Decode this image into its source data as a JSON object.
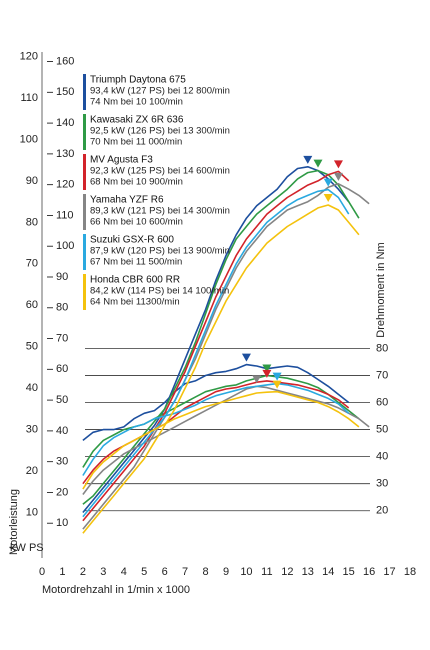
{
  "chart_data": {
    "type": "line",
    "xlabel": "Motordrehzahl in 1/min x 1000",
    "ylabel": "Motorleistung",
    "y_unit_label": "kW PS",
    "y2label": "Drehmoment in Nm",
    "x": [
      2,
      2.5,
      3,
      3.5,
      4,
      4.5,
      5,
      5.5,
      6,
      6.5,
      7,
      7.5,
      8,
      8.5,
      9,
      9.5,
      10,
      10.5,
      11,
      11.5,
      12,
      12.5,
      13,
      13.5,
      14,
      14.5,
      15,
      15.5,
      16
    ],
    "xlim": [
      0,
      18
    ],
    "xticks": [
      0,
      1,
      2,
      3,
      4,
      5,
      6,
      7,
      8,
      9,
      10,
      11,
      12,
      13,
      14,
      15,
      16,
      17,
      18
    ],
    "ylim": [
      0,
      124
    ],
    "yticks": [
      10,
      20,
      30,
      40,
      50,
      60,
      70,
      80,
      90,
      100,
      110,
      120
    ],
    "ps_lim": [
      0,
      167
    ],
    "ps_ticks": [
      10,
      20,
      30,
      40,
      50,
      60,
      70,
      80,
      90,
      100,
      110,
      120,
      130,
      140,
      150,
      160
    ],
    "y2lim": [
      4,
      194
    ],
    "y2ticks": [
      20,
      30,
      40,
      50,
      60,
      70,
      80
    ],
    "series": [
      {
        "name": "Triumph Daytona 675",
        "details": [
          "93,4 kW (127 PS) bei 12 800/min",
          "74 Nm bei 10 100/min"
        ],
        "color": "#1d4f9e",
        "values": [
          10,
          13,
          16,
          19,
          22,
          25,
          28,
          31,
          35,
          41,
          47,
          53,
          59,
          66,
          72,
          77,
          81,
          84,
          86,
          88,
          91,
          93,
          93.4,
          92.5,
          90.5,
          88,
          85,
          null,
          null
        ],
        "torque": [
          46,
          49,
          50,
          50,
          51,
          54,
          56,
          57,
          60,
          64,
          67,
          68,
          70,
          71,
          71.5,
          72.5,
          74,
          73.5,
          72.5,
          73,
          73.5,
          73,
          71,
          68.5,
          66,
          63,
          60,
          null,
          null
        ]
      },
      {
        "name": "Kawasaki ZX 6R 636",
        "details": [
          "92,5 kW (126 PS) bei 13 300/min",
          "70 Nm bei 11 000/min"
        ],
        "color": "#2f9a45",
        "values": [
          12,
          14,
          17,
          20,
          23,
          26,
          29,
          32,
          35,
          40,
          45,
          51,
          58,
          65,
          71,
          76,
          79,
          82,
          84,
          86,
          88,
          90.5,
          92,
          92.5,
          91.5,
          89,
          85,
          81,
          null
        ],
        "torque": [
          36,
          42,
          46,
          48,
          50,
          51,
          52,
          54,
          56,
          58,
          60,
          62,
          64,
          65,
          66,
          66.5,
          68,
          69,
          70,
          69.5,
          69,
          68,
          67,
          65.5,
          63,
          60,
          57,
          54,
          null
        ]
      },
      {
        "name": "MV Agusta F3",
        "details": [
          "92,3 kW (125 PS) bei 14 600/min",
          "68 Nm bei 10 900/min"
        ],
        "color": "#d2232a",
        "values": [
          8,
          11,
          14,
          17,
          20,
          23,
          26,
          30,
          34,
          39,
          44,
          50,
          56,
          62,
          67,
          72,
          76,
          79,
          82,
          84,
          86,
          87.5,
          89,
          90,
          91.5,
          92.3,
          90,
          null,
          null
        ],
        "torque": [
          30,
          35,
          39,
          42,
          44,
          46,
          48,
          50,
          52,
          55,
          58,
          60,
          62,
          64,
          65,
          65.5,
          66.5,
          67.5,
          68,
          67.5,
          67,
          66.5,
          65.5,
          64.5,
          63,
          61,
          58,
          null,
          null
        ]
      },
      {
        "name": "Yamaha YZF R6",
        "details": [
          "89,3 kW (121 PS) bei 14 300/min",
          "66 Nm bei 10 600/min"
        ],
        "color": "#858585",
        "values": [
          6,
          9,
          12,
          15,
          18,
          21,
          25,
          29,
          33,
          37,
          42,
          47,
          53,
          59,
          64,
          69,
          73,
          76,
          79,
          81,
          83,
          84,
          85,
          86.5,
          88.5,
          89.3,
          88,
          86.5,
          84.5
        ],
        "torque": [
          26,
          31,
          35,
          38,
          41,
          43,
          45,
          47,
          49,
          51,
          53,
          55,
          57,
          59,
          61,
          63,
          65,
          66,
          65.5,
          64.5,
          63.5,
          62.5,
          61.5,
          60.5,
          59.5,
          58,
          56,
          54,
          51
        ]
      },
      {
        "name": "Suzuki GSX-R 600",
        "details": [
          "87,9 kW (120 PS) bei 13 900/min",
          "67 Nm bei 11 500/min"
        ],
        "color": "#2aa9e0",
        "values": [
          9,
          12,
          15,
          18,
          21,
          24,
          27,
          30,
          33,
          37,
          42,
          48,
          54,
          60,
          65,
          70,
          74,
          77,
          80,
          82,
          84,
          85.5,
          86.5,
          87.5,
          87.9,
          86,
          82,
          null,
          null
        ],
        "torque": [
          33,
          39,
          44,
          47,
          49,
          51,
          52,
          54,
          55,
          56,
          57.5,
          59,
          61,
          62.5,
          63.5,
          64.5,
          65.5,
          66,
          66.5,
          67,
          66.5,
          65.5,
          64.5,
          63,
          61.5,
          59.5,
          56,
          null,
          null
        ]
      },
      {
        "name": "Honda CBR 600 RR",
        "details": [
          "84,2 kW (114 PS) bei 14 100/min",
          "64 Nm bei 11300/min"
        ],
        "color": "#f4c20d",
        "values": [
          5,
          8,
          11,
          14,
          17,
          20,
          23,
          27,
          31,
          35,
          40,
          45,
          51,
          56,
          61,
          65,
          69,
          72,
          75,
          77,
          79,
          80.5,
          82,
          83.5,
          84.2,
          83,
          80,
          77,
          null
        ],
        "torque": [
          28,
          34,
          38,
          41,
          44,
          46,
          48,
          50,
          52,
          54,
          55.5,
          57,
          58.5,
          59.5,
          60.5,
          61.5,
          62.5,
          63.5,
          63.8,
          64,
          63,
          62,
          61,
          60,
          58.5,
          56.5,
          54,
          51,
          null
        ]
      }
    ]
  }
}
